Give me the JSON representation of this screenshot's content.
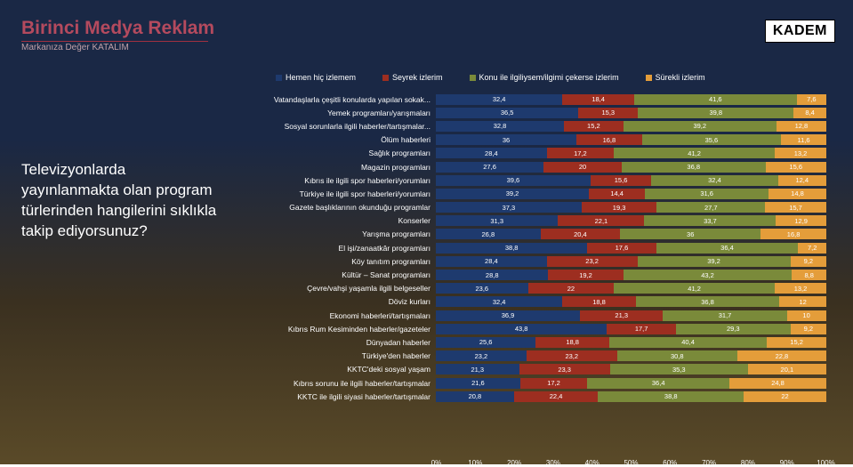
{
  "brand": {
    "name": "Birinci Medya Reklam",
    "tagline": "Markanıza Değer KATALIM"
  },
  "badge": "KADEM",
  "question": "Televizyonlarda yayınlanmakta olan program türlerinden hangilerini sıklıkla takip ediyorsunuz?",
  "legend": [
    {
      "label": "Hemen hiç izlemem",
      "color": "#1e3a6e"
    },
    {
      "label": "Seyrek izlerim",
      "color": "#9d2e20"
    },
    {
      "label": "Konu ile ilgiliysem/ilgimi çekerse izlerim",
      "color": "#7a8a3a"
    },
    {
      "label": "Sürekli izlerim",
      "color": "#e49d3a"
    }
  ],
  "chart": {
    "colors": [
      "#1e3a6e",
      "#9d2e20",
      "#7a8a3a",
      "#e49d3a"
    ],
    "xlim": [
      0,
      100
    ],
    "xtick_step": 10,
    "xticks": [
      "0%",
      "10%",
      "20%",
      "30%",
      "40%",
      "50%",
      "60%",
      "70%",
      "80%",
      "90%",
      "100%"
    ],
    "rows": [
      {
        "label": "Vatandaşlarla çeşitli konularda yapılan sokak...",
        "values": [
          32.4,
          18.4,
          41.6,
          7.6
        ]
      },
      {
        "label": "Yemek programları/yarışmaları",
        "values": [
          36.5,
          15.3,
          39.8,
          8.4
        ]
      },
      {
        "label": "Sosyal sorunlarla ilgili haberler/tartışmalar...",
        "values": [
          32.8,
          15.2,
          39.2,
          12.8
        ]
      },
      {
        "label": "Ölüm haberleri",
        "values": [
          36.0,
          16.8,
          35.6,
          11.6
        ]
      },
      {
        "label": "Sağlık programları",
        "values": [
          28.4,
          17.2,
          41.2,
          13.2
        ]
      },
      {
        "label": "Magazin programları",
        "values": [
          27.6,
          20.0,
          36.8,
          15.6
        ]
      },
      {
        "label": "Kıbrıs ile ilgili spor haberleri/yorumları",
        "values": [
          39.6,
          15.6,
          32.4,
          12.4
        ]
      },
      {
        "label": "Türkiye ile ilgili spor haberleri/yorumları",
        "values": [
          39.2,
          14.4,
          31.6,
          14.8
        ]
      },
      {
        "label": "Gazete başlıklarının okunduğu programlar",
        "values": [
          37.3,
          19.3,
          27.7,
          15.7
        ]
      },
      {
        "label": "Konserler",
        "values": [
          31.3,
          22.1,
          33.7,
          12.9
        ]
      },
      {
        "label": "Yarışma programları",
        "values": [
          26.8,
          20.4,
          36.0,
          16.8
        ]
      },
      {
        "label": "El işi/zanaatkâr programları",
        "values": [
          38.8,
          17.6,
          36.4,
          7.2
        ]
      },
      {
        "label": "Köy tanıtım programları",
        "values": [
          28.4,
          23.2,
          39.2,
          9.2
        ]
      },
      {
        "label": "Kültür – Sanat programları",
        "values": [
          28.8,
          19.2,
          43.2,
          8.8
        ]
      },
      {
        "label": "Çevre/vahşi yaşamla ilgili belgeseller",
        "values": [
          23.6,
          22.0,
          41.2,
          13.2
        ]
      },
      {
        "label": "Döviz kurları",
        "values": [
          32.4,
          18.8,
          36.8,
          12.0
        ]
      },
      {
        "label": "Ekonomi haberleri/tartışmaları",
        "values": [
          36.9,
          21.3,
          31.7,
          10.0
        ]
      },
      {
        "label": "Kıbrıs Rum Kesiminden haberler/gazeteler",
        "values": [
          43.8,
          17.7,
          29.3,
          9.2
        ]
      },
      {
        "label": "Dünyadan haberler",
        "values": [
          25.6,
          18.8,
          40.4,
          15.2
        ]
      },
      {
        "label": "Türkiye'den haberler",
        "values": [
          23.2,
          23.2,
          30.8,
          22.8
        ]
      },
      {
        "label": "KKTC'deki sosyal yaşam",
        "values": [
          21.3,
          23.3,
          35.3,
          20.1
        ]
      },
      {
        "label": "Kıbrıs sorunu ile ilgili haberler/tartışmalar",
        "values": [
          21.6,
          17.2,
          36.4,
          24.8
        ]
      },
      {
        "label": "KKTC ile ilgili siyasi haberler/tartışmalar",
        "values": [
          20.8,
          22.4,
          38.8,
          22.0
        ]
      }
    ]
  }
}
